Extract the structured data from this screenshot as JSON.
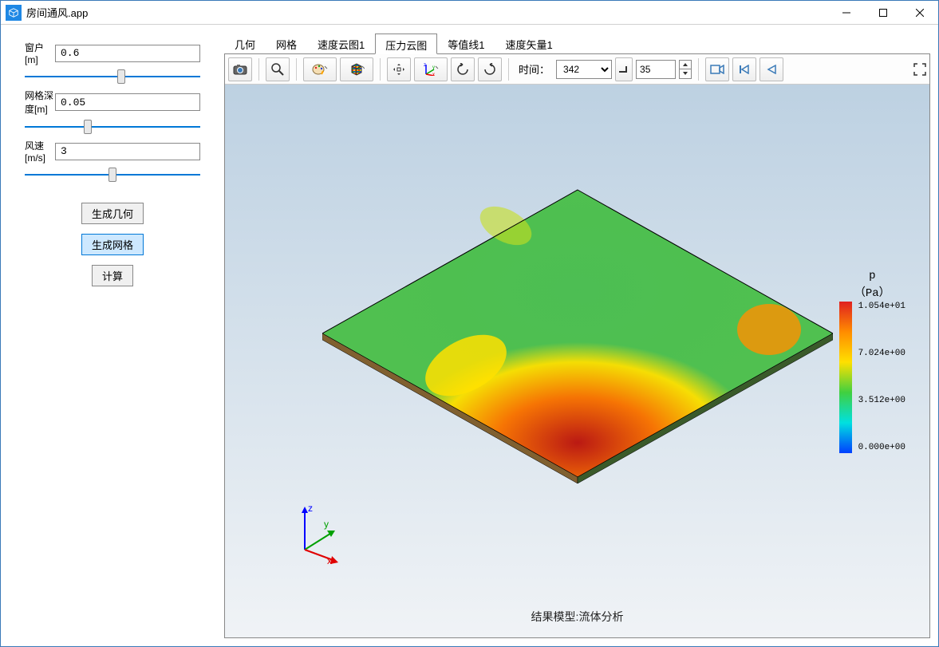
{
  "window": {
    "title": "房间通风.app"
  },
  "params": {
    "p1": {
      "label": "窗户[m]",
      "value": "0.6",
      "slider": 55
    },
    "p2": {
      "label": "网格深度[m]",
      "value": "0.05",
      "slider": 35
    },
    "p3": {
      "label": "风速[m/s]",
      "value": "3",
      "slider": 50
    }
  },
  "buttons": {
    "b1": "生成几何",
    "b2": "生成网格",
    "b3": "计算"
  },
  "tabs": [
    "几何",
    "网格",
    "速度云图1",
    "压力云图",
    "等值线1",
    "速度矢量1"
  ],
  "active_tab": 3,
  "toolbar": {
    "time_label": "时间：",
    "time_value": "342",
    "frame_value": "35"
  },
  "legend": {
    "title_line1": "p",
    "title_line2": "（Pa）",
    "ticks": [
      "1.054e+01",
      "7.024e+00",
      "3.512e+00",
      "0.000e+00"
    ],
    "gradient": [
      "#e02020",
      "#ff8c00",
      "#ffe000",
      "#40d040",
      "#00e0e0",
      "#0040ff"
    ]
  },
  "caption": "结果模型:流体分析",
  "colors": {
    "accent": "#0078d7",
    "viewport_top": "#bdd1e2",
    "viewport_bottom": "#f0f3f6"
  }
}
